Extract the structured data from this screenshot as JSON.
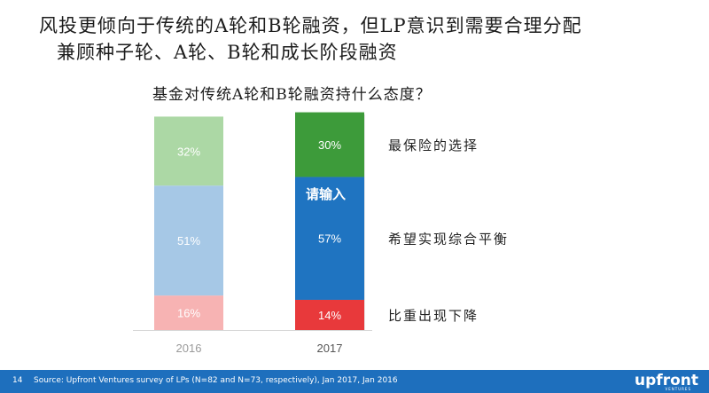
{
  "headline": {
    "line1": "风投更倾向于传统的A轮和B轮融资，但LP意识到需要合理分配",
    "line2": "兼顾种子轮、A轮、B轮和成长阶段融资"
  },
  "overlay_text": "请输入",
  "footer": {
    "page": "14",
    "source": "Source: Upfront Ventures survey of LPs (N=82 and N=73, respectively), Jan 2017, Jan 2016",
    "logo": "upfront",
    "logo_sub": "VENTURES"
  },
  "chart_data": {
    "type": "bar",
    "stacked": true,
    "title": "基金对传统A轮和B轮融资持什么态度？",
    "categories": [
      "2016",
      "2017"
    ],
    "series": [
      {
        "name": "比重出现下降",
        "values": [
          16,
          14
        ],
        "colors": [
          "#f7b3b3",
          "#e8393b"
        ]
      },
      {
        "name": "希望实现综合平衡",
        "values": [
          51,
          57
        ],
        "colors": [
          "#a6c8e6",
          "#1f74c1"
        ]
      },
      {
        "name": "最保险的选择",
        "values": [
          32,
          30
        ],
        "colors": [
          "#acd8a5",
          "#3d9b3a"
        ]
      }
    ],
    "ylim": [
      0,
      100
    ],
    "value_suffix": "%",
    "grid": false,
    "legend": "right"
  }
}
